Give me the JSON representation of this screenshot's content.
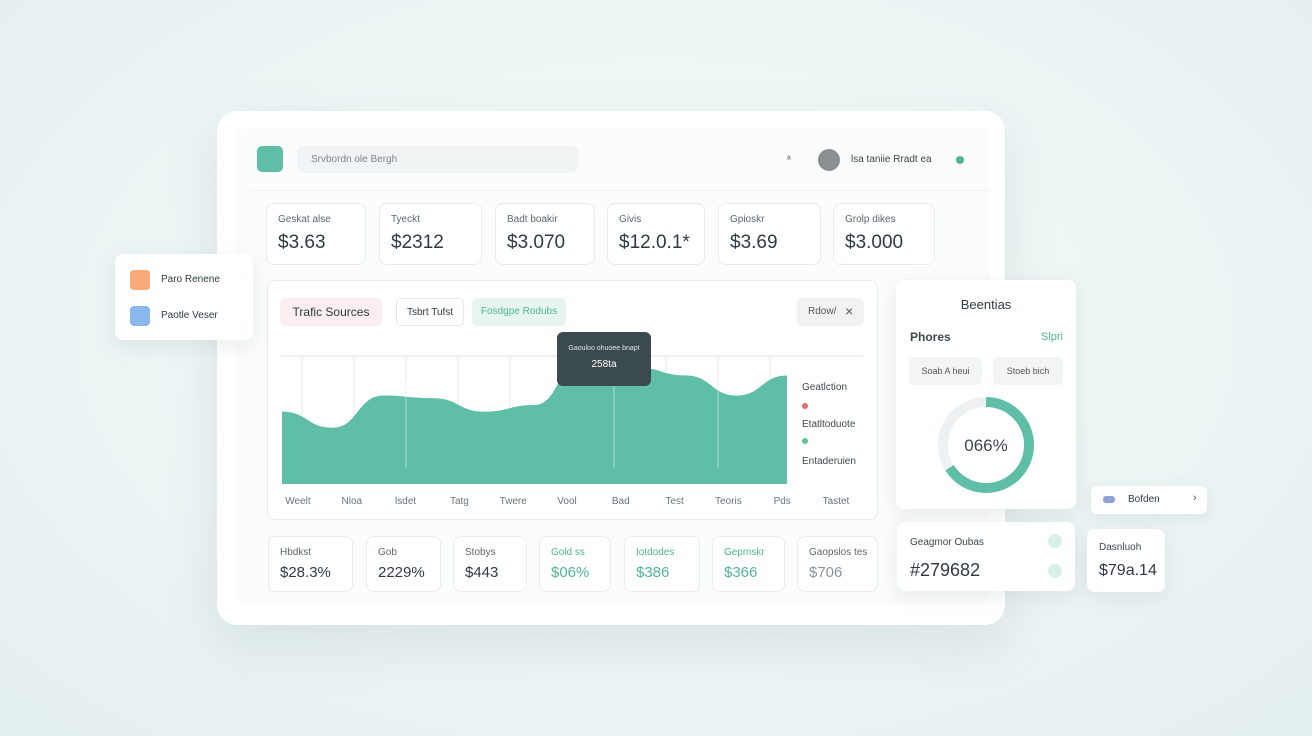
{
  "topbar": {
    "search": "Srvbordn ole Bergh",
    "badge": "ᵃ",
    "user": "lsa taniie Rradt ea"
  },
  "stats": [
    {
      "label": "Geskat alse",
      "value": "$3.63"
    },
    {
      "label": "Tyeckt",
      "value": "$2312"
    },
    {
      "label": "Badt boakir",
      "value": "$3.070"
    },
    {
      "label": "Givis",
      "value": "$12.0.1*"
    },
    {
      "label": "Gpioskr",
      "value": "$3.69"
    },
    {
      "label": "Grolp dikes",
      "value": "$3.000"
    }
  ],
  "chart": {
    "type": "area",
    "tabs": [
      "Trafic Sources",
      "Tsbrt Tufst",
      "Fosdgpe Rodubs"
    ],
    "action": "Rdow/",
    "tooltip": {
      "title": "Gaouloo ohuoee bnapt",
      "value": "258ta"
    },
    "legend": [
      "Geatlction",
      "Etatltoduote",
      "Entaderuien"
    ],
    "categories": [
      "Weelt",
      "Nloa",
      "lsdet",
      "Tatg",
      "Twere",
      "Vool",
      "Bad",
      "Test",
      "Teoris",
      "Pds",
      "Tastet"
    ],
    "values": [
      54,
      42,
      66,
      64,
      54,
      59,
      96,
      87,
      81,
      66,
      81
    ],
    "ylim": [
      0,
      100
    ],
    "color": "#5fbfa6"
  },
  "metrics": [
    {
      "label": "Hbdkst",
      "value": "$28.3%"
    },
    {
      "label": "Gob",
      "value": "2229%"
    },
    {
      "label": "Stobys",
      "value": "$443"
    },
    {
      "label": "Gold ss",
      "value": "$06%"
    },
    {
      "label": "Iotdodes",
      "value": "$386"
    },
    {
      "label": "Gepmskr",
      "value": "$366"
    },
    {
      "label": "Gaopslos tes",
      "value": "$706"
    }
  ],
  "side_menu": [
    "Paro Renene",
    "Paotle Veser"
  ],
  "panel": {
    "title": "Beentias",
    "subtitle": "Phores",
    "link": "Slpri",
    "buttons": [
      "Soab A heui",
      "Stoeb bich"
    ],
    "donut": {
      "value": 66,
      "label": "066%"
    }
  },
  "summary": {
    "label": "Geagmor Oubas",
    "value": "#279682"
  },
  "mini": {
    "label": "Dasnluoh",
    "value": "$79a.14"
  },
  "pill": "Bofden"
}
